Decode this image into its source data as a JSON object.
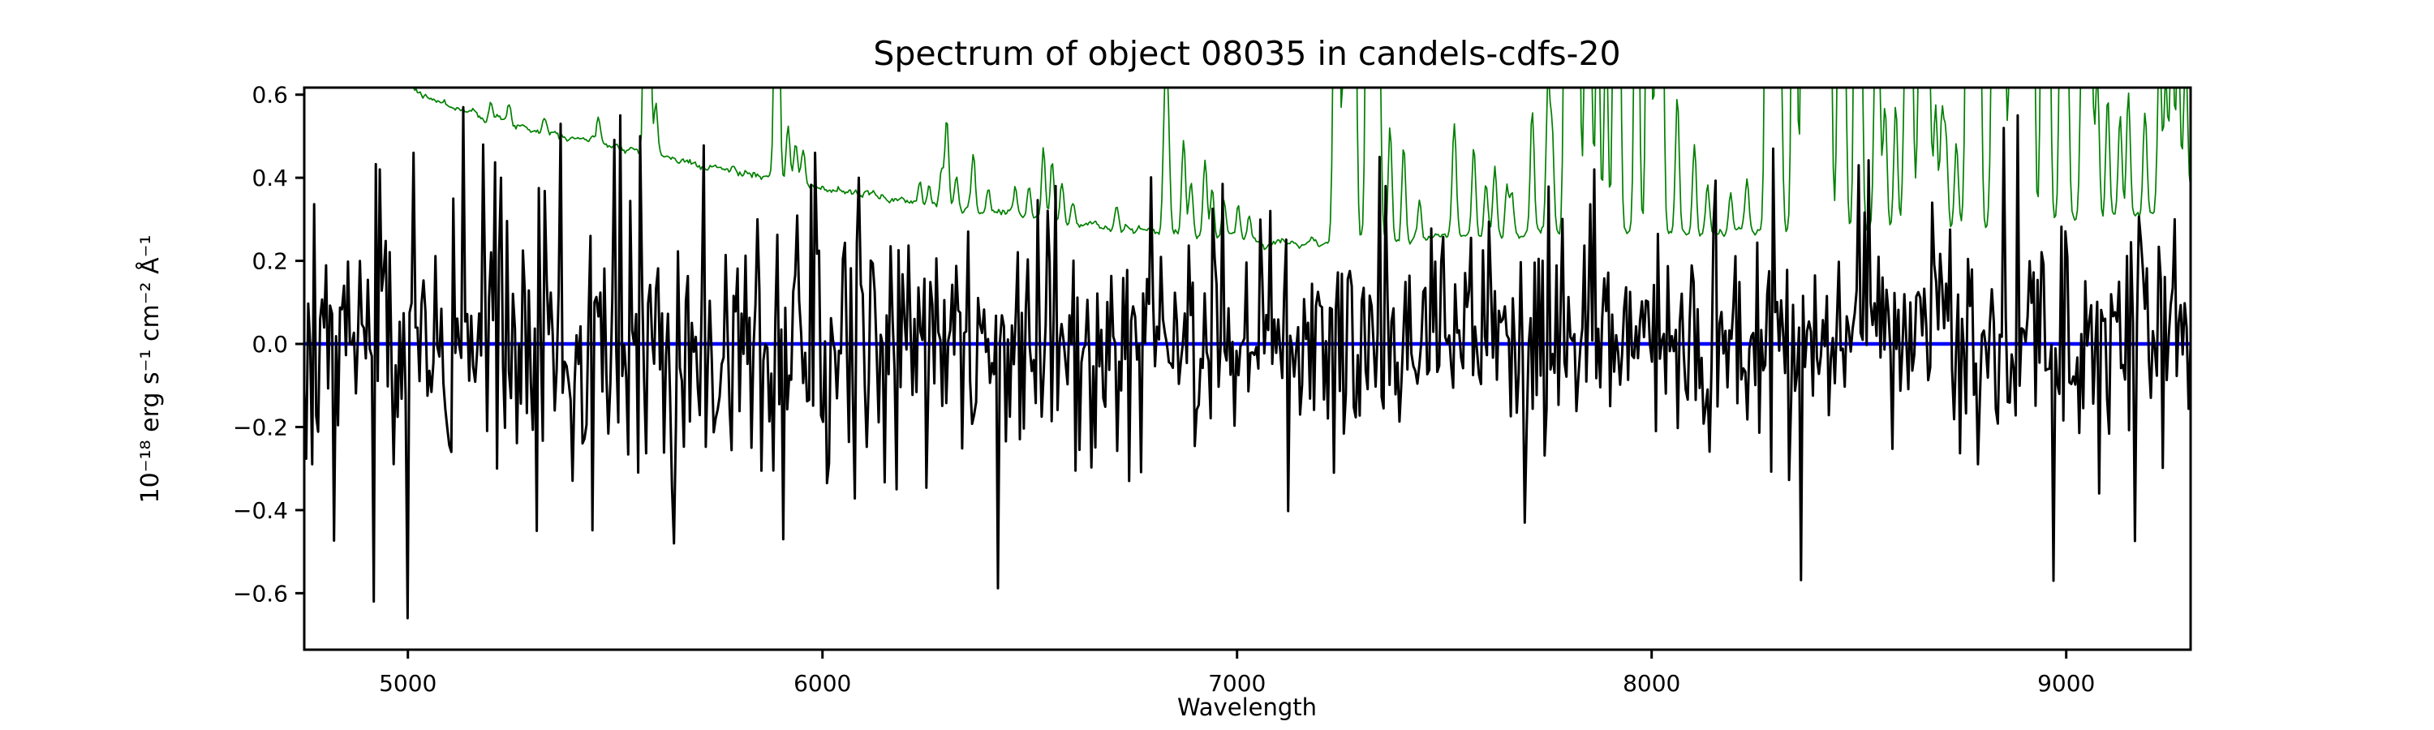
{
  "figure": {
    "background": "#ffffff"
  },
  "chart_data": {
    "type": "line",
    "title": "Spectrum of object 08035 in candels-cdfs-20",
    "xlabel": "Wavelength",
    "ylabel": "10⁻¹⁸ erg s⁻¹ cm⁻² Å⁻¹",
    "xlim": [
      4750,
      9300
    ],
    "ylim": [
      -0.736,
      0.617
    ],
    "xticks": [
      5000,
      6000,
      7000,
      8000,
      9000
    ],
    "xticklabels": [
      "5000",
      "6000",
      "7000",
      "8000",
      "9000"
    ],
    "yticks": [
      -0.6,
      -0.4,
      -0.2,
      0.0,
      0.2,
      0.4,
      0.6
    ],
    "yticklabels": [
      "−0.6",
      "−0.4",
      "−0.2",
      "0.0",
      "0.2",
      "0.4",
      "0.6"
    ],
    "grid": false,
    "legend": null,
    "series": [
      {
        "name": "zero-line",
        "kind": "hline",
        "y": 0.0,
        "color": "#0000ff",
        "linewidth": 4.5
      },
      {
        "name": "noise-spectrum",
        "kind": "sky",
        "color": "#008000",
        "linewidth": 1.7,
        "n": 1400,
        "seed": 7,
        "jitter": 0.012,
        "default_spike_width": 4.5,
        "baseline_points": [
          [
            4750,
            0.8
          ],
          [
            4900,
            0.7
          ],
          [
            5000,
            0.63
          ],
          [
            5030,
            0.6
          ],
          [
            5100,
            0.575
          ],
          [
            5200,
            0.545
          ],
          [
            5300,
            0.52
          ],
          [
            5400,
            0.5
          ],
          [
            5500,
            0.48
          ],
          [
            5600,
            0.455
          ],
          [
            5700,
            0.43
          ],
          [
            5800,
            0.415
          ],
          [
            5900,
            0.39
          ],
          [
            6000,
            0.375
          ],
          [
            6100,
            0.36
          ],
          [
            6200,
            0.345
          ],
          [
            6300,
            0.33
          ],
          [
            6400,
            0.32
          ],
          [
            6500,
            0.305
          ],
          [
            6600,
            0.29
          ],
          [
            6700,
            0.28
          ],
          [
            6800,
            0.27
          ],
          [
            6900,
            0.262
          ],
          [
            7000,
            0.255
          ],
          [
            7100,
            0.247
          ],
          [
            7200,
            0.243
          ],
          [
            7300,
            0.245
          ],
          [
            7400,
            0.25
          ],
          [
            7500,
            0.252
          ],
          [
            7600,
            0.255
          ],
          [
            7700,
            0.26
          ],
          [
            7800,
            0.265
          ],
          [
            7900,
            0.27
          ],
          [
            8000,
            0.272
          ],
          [
            8100,
            0.27
          ],
          [
            8200,
            0.268
          ],
          [
            8300,
            0.27
          ],
          [
            8400,
            0.272
          ],
          [
            8500,
            0.275
          ],
          [
            8600,
            0.278
          ],
          [
            8700,
            0.28
          ],
          [
            8800,
            0.285
          ],
          [
            8900,
            0.29
          ],
          [
            9000,
            0.3
          ],
          [
            9100,
            0.3
          ],
          [
            9200,
            0.315
          ],
          [
            9300,
            0.36
          ]
        ],
        "spikes": [
          [
            5200,
            0.04
          ],
          [
            5245,
            0.035
          ],
          [
            5330,
            0.03
          ],
          [
            5460,
            0.045
          ],
          [
            5577,
            2.2,
            5
          ],
          [
            5598,
            0.12
          ],
          [
            5890,
            1.0,
            5
          ],
          [
            5917,
            0.14
          ],
          [
            5935,
            0.1
          ],
          [
            5953,
            0.08
          ],
          [
            6235,
            0.05
          ],
          [
            6257,
            0.05
          ],
          [
            6287,
            0.09
          ],
          [
            6300,
            0.22
          ],
          [
            6323,
            0.08
          ],
          [
            6364,
            0.13
          ],
          [
            6400,
            0.05
          ],
          [
            6465,
            0.06
          ],
          [
            6498,
            0.07
          ],
          [
            6533,
            0.17
          ],
          [
            6554,
            0.14
          ],
          [
            6577,
            0.09
          ],
          [
            6604,
            0.06
          ],
          [
            6710,
            0.05
          ],
          [
            6827,
            0.34,
            5
          ],
          [
            6834,
            0.2
          ],
          [
            6871,
            0.23
          ],
          [
            6889,
            0.12
          ],
          [
            6923,
            0.19
          ],
          [
            6940,
            0.11
          ],
          [
            6969,
            0.08
          ],
          [
            7003,
            0.07
          ],
          [
            7030,
            0.05
          ],
          [
            7240,
            1.3,
            6
          ],
          [
            7262,
            1.0,
            5
          ],
          [
            7276,
            0.9,
            5
          ],
          [
            7284,
            0.7
          ],
          [
            7316,
            1.2,
            5
          ],
          [
            7329,
            0.6
          ],
          [
            7341,
            0.7,
            5
          ],
          [
            7369,
            0.27
          ],
          [
            7402,
            0.22
          ],
          [
            7440,
            0.1
          ],
          [
            7524,
            0.28,
            5
          ],
          [
            7571,
            0.22
          ],
          [
            7600,
            0.14
          ],
          [
            7622,
            0.17
          ],
          [
            7651,
            0.12
          ],
          [
            7663,
            0.1
          ],
          [
            7712,
            0.3
          ],
          [
            7750,
            0.36
          ],
          [
            7760,
            0.24
          ],
          [
            7794,
            1.1,
            5
          ],
          [
            7808,
            0.55
          ],
          [
            7821,
            1.2,
            5
          ],
          [
            7841,
            0.55
          ],
          [
            7853,
            0.45
          ],
          [
            7870,
            0.65
          ],
          [
            7890,
            0.5
          ],
          [
            7913,
            1.3,
            5
          ],
          [
            7921,
            0.7
          ],
          [
            7964,
            1.1,
            5
          ],
          [
            7993,
            1.4,
            5
          ],
          [
            8014,
            1.1,
            5
          ],
          [
            8025,
            0.7
          ],
          [
            8062,
            0.33
          ],
          [
            8103,
            0.22
          ],
          [
            8135,
            0.12
          ],
          [
            8190,
            0.1
          ],
          [
            8230,
            0.12
          ],
          [
            8280,
            1.6,
            5
          ],
          [
            8288,
            1.1
          ],
          [
            8299,
            0.9
          ],
          [
            8310,
            0.55
          ],
          [
            8344,
            1.4,
            5
          ],
          [
            8365,
            0.95
          ],
          [
            8382,
            1.1
          ],
          [
            8399,
            0.95
          ],
          [
            8415,
            0.85
          ],
          [
            8430,
            0.75
          ],
          [
            8452,
            0.65
          ],
          [
            8465,
            0.55
          ],
          [
            8493,
            1.1
          ],
          [
            8504,
            0.7
          ],
          [
            8540,
            0.45
          ],
          [
            8548,
            0.4
          ],
          [
            8563,
            0.3
          ],
          [
            8589,
            0.3
          ],
          [
            8615,
            0.6,
            6
          ],
          [
            8627,
            0.5
          ],
          [
            8649,
            0.6,
            6
          ],
          [
            8662,
            0.45
          ],
          [
            8670,
            0.35
          ],
          [
            8685,
            0.3
          ],
          [
            8700,
            0.26
          ],
          [
            8710,
            0.22
          ],
          [
            8735,
            0.2
          ],
          [
            8761,
            0.75
          ],
          [
            8768,
            0.6
          ],
          [
            8778,
            0.5
          ],
          [
            8791,
            0.65
          ],
          [
            8827,
            1.0,
            6
          ],
          [
            8836,
            0.8
          ],
          [
            8850,
            0.6
          ],
          [
            8870,
            0.9,
            6
          ],
          [
            8886,
            0.8
          ],
          [
            8903,
            1.05,
            6
          ],
          [
            8919,
            0.95
          ],
          [
            8943,
            0.85
          ],
          [
            8958,
            0.65
          ],
          [
            8988,
            0.75
          ],
          [
            9002,
            0.55
          ],
          [
            9038,
            0.45
          ],
          [
            9049,
            0.55
          ],
          [
            9061,
            0.4
          ],
          [
            9075,
            0.35
          ],
          [
            9100,
            0.3
          ],
          [
            9130,
            0.25
          ],
          [
            9150,
            0.3
          ],
          [
            9190,
            0.25
          ],
          [
            9225,
            0.4
          ],
          [
            9240,
            0.3
          ],
          [
            9255,
            0.45
          ],
          [
            9270,
            0.4
          ],
          [
            9288,
            0.35
          ]
        ]
      },
      {
        "name": "observed-flux",
        "kind": "noise",
        "color": "#000000",
        "linewidth": 3,
        "n": 950,
        "seed": 20,
        "tail_prob": 0.05,
        "tail_boost": 1.8,
        "sigma_points": [
          [
            4750,
            0.195
          ],
          [
            5200,
            0.175
          ],
          [
            5600,
            0.155
          ],
          [
            6000,
            0.14
          ],
          [
            6500,
            0.125
          ],
          [
            7000,
            0.12
          ],
          [
            7500,
            0.12
          ],
          [
            8000,
            0.12
          ],
          [
            8600,
            0.13
          ],
          [
            9300,
            0.135
          ]
        ],
        "anchor_points": [
          [
            4916,
            -0.62
          ],
          [
            4931,
            0.42
          ],
          [
            5000,
            -0.66
          ],
          [
            5014,
            0.46
          ],
          [
            5132,
            0.57
          ],
          [
            5180,
            0.48
          ],
          [
            5224,
            0.4
          ],
          [
            5310,
            -0.45
          ],
          [
            5370,
            0.53
          ],
          [
            5513,
            0.55
          ],
          [
            5560,
            0.5
          ],
          [
            5640,
            -0.48
          ],
          [
            5905,
            -0.47
          ],
          [
            5980,
            0.46
          ],
          [
            6090,
            0.4
          ],
          [
            6180,
            -0.35
          ],
          [
            6560,
            0.38
          ],
          [
            6740,
            -0.33
          ],
          [
            7080,
            0.32
          ],
          [
            7343,
            0.45
          ],
          [
            7360,
            0.38
          ],
          [
            7695,
            -0.43
          ],
          [
            7860,
            0.42
          ],
          [
            8292,
            0.47
          ],
          [
            8501,
            0.43
          ],
          [
            8676,
            0.34
          ],
          [
            8849,
            0.52
          ],
          [
            8883,
            0.55
          ],
          [
            8967,
            -0.57
          ],
          [
            9080,
            -0.36
          ],
          [
            9260,
            0.3
          ]
        ]
      }
    ]
  }
}
